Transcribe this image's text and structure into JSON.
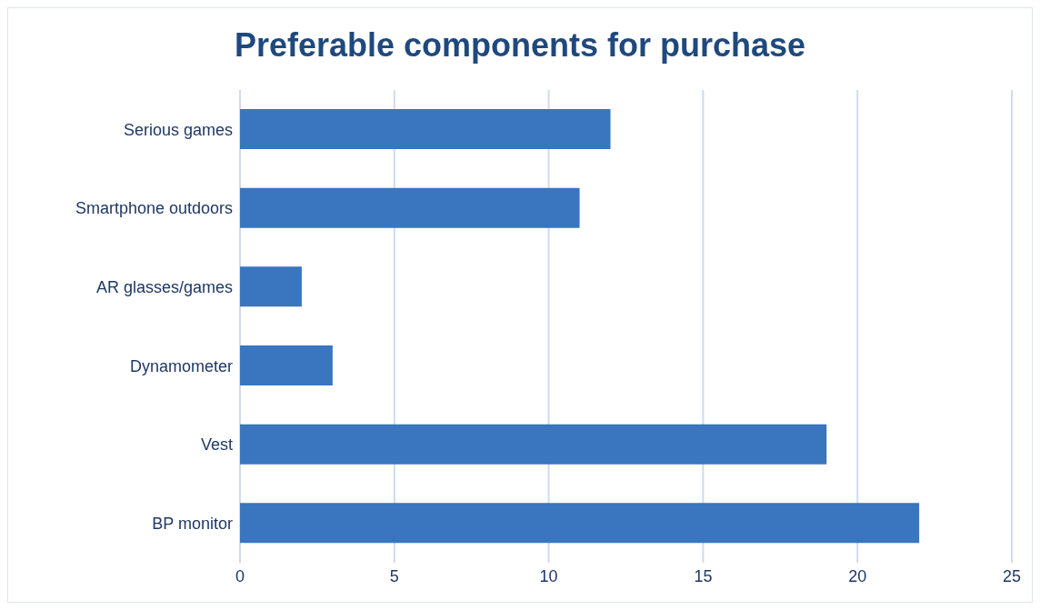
{
  "chart_data": {
    "type": "bar",
    "orientation": "horizontal",
    "title": "Preferable components for purchase",
    "categories": [
      "Serious games",
      "Smartphone outdoors",
      "AR glasses/games",
      "Dynamometer",
      "Vest",
      "BP monitor"
    ],
    "values": [
      12,
      11,
      2,
      3,
      19,
      22
    ],
    "color": "#3a75c0",
    "xlim": [
      0,
      25
    ],
    "xticks": [
      0,
      5,
      10,
      15,
      20,
      25
    ],
    "grid": "x"
  }
}
